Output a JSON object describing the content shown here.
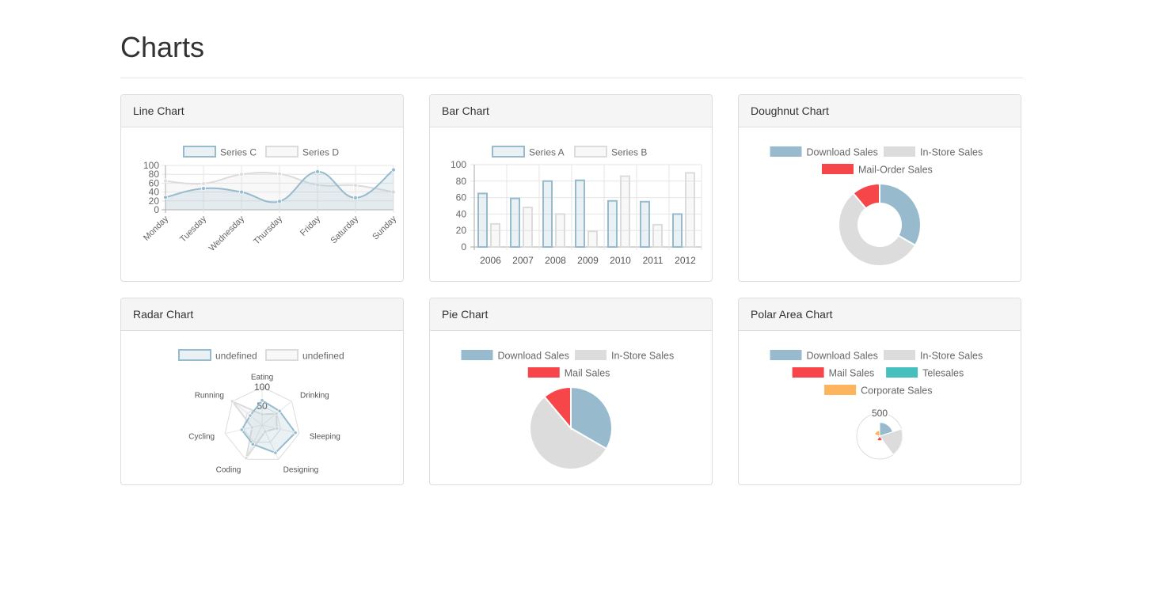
{
  "page": {
    "title": "Charts"
  },
  "colors": {
    "blue": "#97bbcd",
    "gray": "#dcdcdc",
    "red": "#f7464a",
    "teal": "#46bfbd",
    "orange": "#fdb45c"
  },
  "panels": {
    "line": {
      "title": "Line Chart"
    },
    "bar": {
      "title": "Bar Chart"
    },
    "doughnut": {
      "title": "Doughnut Chart"
    },
    "radar": {
      "title": "Radar Chart"
    },
    "pie": {
      "title": "Pie Chart"
    },
    "polar": {
      "title": "Polar Area Chart"
    }
  },
  "chart_data": [
    {
      "id": "line",
      "type": "line",
      "categories": [
        "Monday",
        "Tuesday",
        "Wednesday",
        "Thursday",
        "Friday",
        "Saturday",
        "Sunday"
      ],
      "series": [
        {
          "name": "Series C",
          "values": [
            28,
            48,
            40,
            19,
            86,
            27,
            90
          ]
        },
        {
          "name": "Series D",
          "values": [
            65,
            59,
            80,
            81,
            56,
            55,
            40
          ]
        }
      ],
      "yticks": [
        0,
        20,
        40,
        60,
        80,
        100
      ],
      "ylim": [
        0,
        100
      ],
      "legend": "top",
      "grid": true
    },
    {
      "id": "bar",
      "type": "bar",
      "categories": [
        "2006",
        "2007",
        "2008",
        "2009",
        "2010",
        "2011",
        "2012"
      ],
      "series": [
        {
          "name": "Series A",
          "values": [
            65,
            59,
            80,
            81,
            56,
            55,
            40
          ]
        },
        {
          "name": "Series B",
          "values": [
            28,
            48,
            40,
            19,
            86,
            27,
            90
          ]
        }
      ],
      "yticks": [
        0,
        20,
        40,
        60,
        80,
        100
      ],
      "ylim": [
        0,
        100
      ],
      "legend": "top",
      "grid": true
    },
    {
      "id": "doughnut",
      "type": "pie",
      "variant": "doughnut",
      "slices": [
        {
          "label": "Download Sales",
          "value": 300
        },
        {
          "label": "In-Store Sales",
          "value": 500
        },
        {
          "label": "Mail-Order Sales",
          "value": 100
        }
      ],
      "legend": "top"
    },
    {
      "id": "radar",
      "type": "radar",
      "categories": [
        "Eating",
        "Drinking",
        "Sleeping",
        "Designing",
        "Coding",
        "Cycling",
        "Running"
      ],
      "series": [
        {
          "name": "undefined",
          "values": [
            65,
            59,
            90,
            81,
            56,
            55,
            40
          ]
        },
        {
          "name": "undefined",
          "values": [
            28,
            48,
            40,
            19,
            96,
            27,
            100
          ]
        }
      ],
      "ticks": [
        50,
        100
      ],
      "rmax": 100,
      "legend": "top"
    },
    {
      "id": "pie",
      "type": "pie",
      "slices": [
        {
          "label": "Download Sales",
          "value": 300
        },
        {
          "label": "In-Store Sales",
          "value": 500
        },
        {
          "label": "Mail Sales",
          "value": 100
        }
      ],
      "legend": "top"
    },
    {
      "id": "polar",
      "type": "polar",
      "slices": [
        {
          "label": "Download Sales",
          "value": 300
        },
        {
          "label": "In-Store Sales",
          "value": 500
        },
        {
          "label": "Mail Sales",
          "value": 100
        },
        {
          "label": "Telesales",
          "value": 40
        },
        {
          "label": "Corporate Sales",
          "value": 120
        }
      ],
      "ticks": [
        500
      ],
      "rmax": 500,
      "legend": "top"
    }
  ]
}
